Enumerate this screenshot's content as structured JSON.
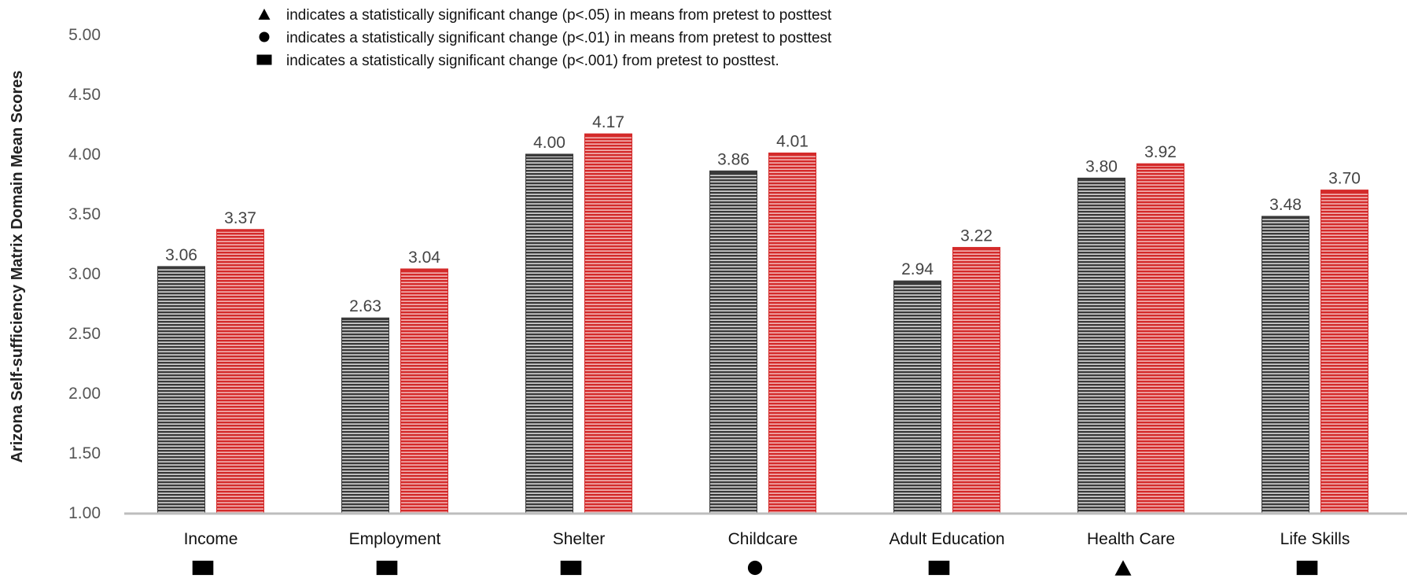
{
  "chart_data": {
    "type": "bar",
    "ylabel": "Arizona Self-sufficiency Matrix Domain Mean Scores",
    "xlabel": "",
    "ylim": [
      1.0,
      5.0
    ],
    "yticks": [
      "1.00",
      "1.50",
      "2.00",
      "2.50",
      "3.00",
      "3.50",
      "4.00",
      "4.50",
      "5.00"
    ],
    "grid": false,
    "categories": [
      "Income",
      "Employment",
      "Shelter",
      "Childcare",
      "Adult Education",
      "Health Care",
      "Life Skills"
    ],
    "series": [
      {
        "color": "#3a3a3a",
        "values": [
          3.06,
          2.63,
          4.0,
          3.86,
          2.94,
          3.8,
          3.48
        ],
        "labels": [
          "3.06",
          "2.63",
          "4.00",
          "3.86",
          "2.94",
          "3.80",
          "3.48"
        ]
      },
      {
        "color": "#d42a2a",
        "values": [
          3.37,
          3.04,
          4.17,
          4.01,
          3.22,
          3.92,
          3.7
        ],
        "labels": [
          "3.37",
          "3.04",
          "4.17",
          "4.01",
          "3.22",
          "3.92",
          "3.70"
        ]
      }
    ],
    "significance": [
      "square",
      "square",
      "square",
      "circle",
      "square",
      "triangle",
      "square"
    ],
    "legend": [
      {
        "marker": "triangle",
        "text": "indicates a statistically significant change (p<.05) in means from pretest to posttest"
      },
      {
        "marker": "circle",
        "text": "indicates a statistically significant change (p<.01) in means from pretest to posttest"
      },
      {
        "marker": "square",
        "text": "indicates a statistically significant change (p<.001) from pretest to posttest."
      }
    ]
  }
}
